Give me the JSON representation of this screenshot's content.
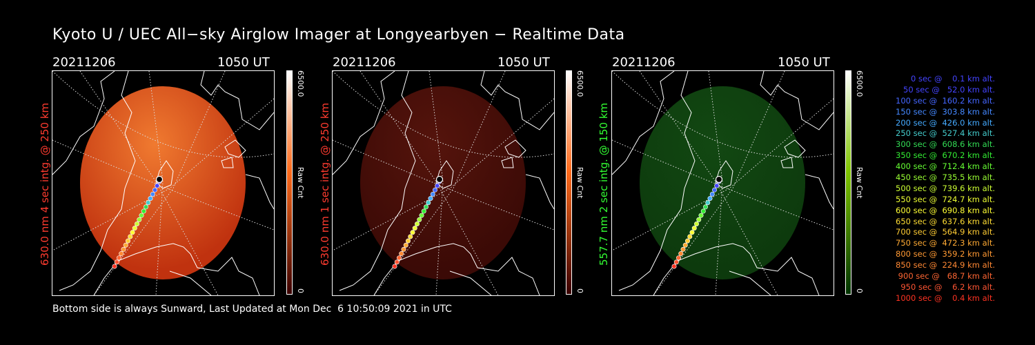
{
  "title": "Kyoto U / UEC All−sky Airglow Imager at Longyearbyen − Realtime Data",
  "footer": "Bottom side is always Sunward, Last Updated at Mon Dec  6 10:50:09 2021 in UTC",
  "panels": [
    {
      "date": "20211206",
      "ut": "1050 UT",
      "label": "630.0 nm 4 sec intg. @ 250 km",
      "label_color": "#ff3b2f",
      "cb_max": "6500.0",
      "cb_min": "0",
      "cb_title": "Raw Cnt",
      "cb_top": "#ffffff",
      "cb_mid": "#ff6a1a",
      "cb_bottom": "#3a0000",
      "fill_color": "#c0320f",
      "fill_light": "#f07a30"
    },
    {
      "date": "20211206",
      "ut": "1050 UT",
      "label": "630.0 nm 1 sec intg. @ 250 km",
      "label_color": "#ff3b2f",
      "cb_max": "6500.0",
      "cb_min": "0",
      "cb_title": "Raw Cnt",
      "cb_top": "#ffffff",
      "cb_mid": "#ff6a1a",
      "cb_bottom": "#3a0000",
      "fill_color": "#3b0a06",
      "fill_light": "#55140c"
    },
    {
      "date": "20211206",
      "ut": "1050 UT",
      "label": "557.7 nm 2 sec intg. @ 150 km",
      "label_color": "#33ff33",
      "cb_max": "6500.0",
      "cb_min": "0",
      "cb_title": "Raw Cnt",
      "cb_top": "#ffffff",
      "cb_mid": "#7fc400",
      "cb_bottom": "#003300",
      "fill_color": "#0d3a0d",
      "fill_light": "#124812"
    }
  ],
  "legend": [
    {
      "text": "   0 sec @    0.1 km alt.",
      "color": "#4444ff"
    },
    {
      "text": "  50 sec @   52.0 km alt.",
      "color": "#4444ff"
    },
    {
      "text": " 100 sec @  160.2 km alt.",
      "color": "#4466ff"
    },
    {
      "text": " 150 sec @  303.8 km alt.",
      "color": "#4488ff"
    },
    {
      "text": " 200 sec @  426.0 km alt.",
      "color": "#44aaff"
    },
    {
      "text": " 250 sec @  527.4 km alt.",
      "color": "#44cccc"
    },
    {
      "text": " 300 sec @  608.6 km alt.",
      "color": "#33dd55"
    },
    {
      "text": " 350 sec @  670.2 km alt.",
      "color": "#33ee33"
    },
    {
      "text": " 400 sec @  712.4 km alt.",
      "color": "#66ff33"
    },
    {
      "text": " 450 sec @  735.5 km alt.",
      "color": "#99ff33"
    },
    {
      "text": " 500 sec @  739.6 km alt.",
      "color": "#ccff33"
    },
    {
      "text": " 550 sec @  724.7 km alt.",
      "color": "#eeff33"
    },
    {
      "text": " 600 sec @  690.8 km alt.",
      "color": "#ffff33"
    },
    {
      "text": " 650 sec @  637.6 km alt.",
      "color": "#ffdd33"
    },
    {
      "text": " 700 sec @  564.9 km alt.",
      "color": "#ffcc33"
    },
    {
      "text": " 750 sec @  472.3 km alt.",
      "color": "#ffaa33"
    },
    {
      "text": " 800 sec @  359.2 km alt.",
      "color": "#ff9933"
    },
    {
      "text": " 850 sec @  224.9 km alt.",
      "color": "#ff8833"
    },
    {
      "text": " 900 sec @   68.7 km alt.",
      "color": "#ff6633"
    },
    {
      "text": " 950 sec @    6.2 km alt.",
      "color": "#ff5533"
    },
    {
      "text": "1000 sec @    0.4 km alt.",
      "color": "#ff3322"
    }
  ]
}
